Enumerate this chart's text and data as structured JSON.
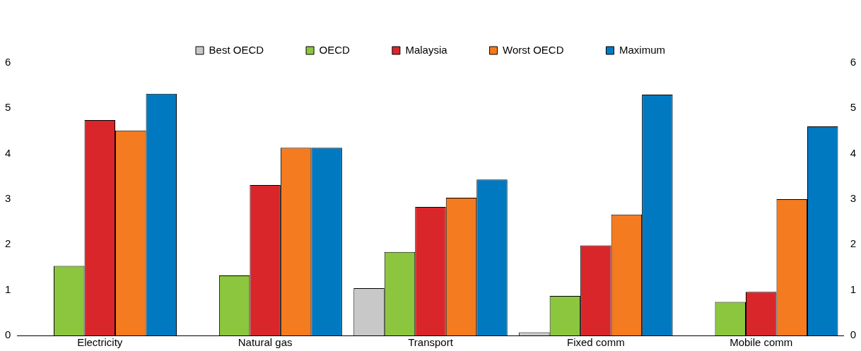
{
  "chart_data": {
    "type": "bar",
    "categories": [
      "Electricity",
      "Natural gas",
      "Transport",
      "Fixed comm",
      "Mobile comm"
    ],
    "series": [
      {
        "name": "Best OECD",
        "color": "#c8c8c8",
        "values": [
          0,
          0,
          1.04,
          0.07,
          0
        ]
      },
      {
        "name": "OECD",
        "color": "#8cc63f",
        "values": [
          1.53,
          1.32,
          1.84,
          0.87,
          0.74
        ]
      },
      {
        "name": "Malaysia",
        "color": "#d9262b",
        "values": [
          4.74,
          3.31,
          2.83,
          1.98,
          0.96
        ]
      },
      {
        "name": "Worst OECD",
        "color": "#f47b20",
        "values": [
          4.51,
          4.13,
          3.03,
          2.66,
          3.0
        ]
      },
      {
        "name": "Maximum",
        "color": "#0079c1",
        "values": [
          5.32,
          4.13,
          3.43,
          5.3,
          4.6
        ]
      }
    ],
    "ylim": [
      0,
      6
    ],
    "yticks": [
      0,
      1,
      2,
      3,
      4,
      5,
      6
    ],
    "y2lim": [
      0,
      6
    ],
    "y2ticks": [
      0,
      1,
      2,
      3,
      4,
      5,
      6
    ],
    "grid": false,
    "legend": "top"
  }
}
